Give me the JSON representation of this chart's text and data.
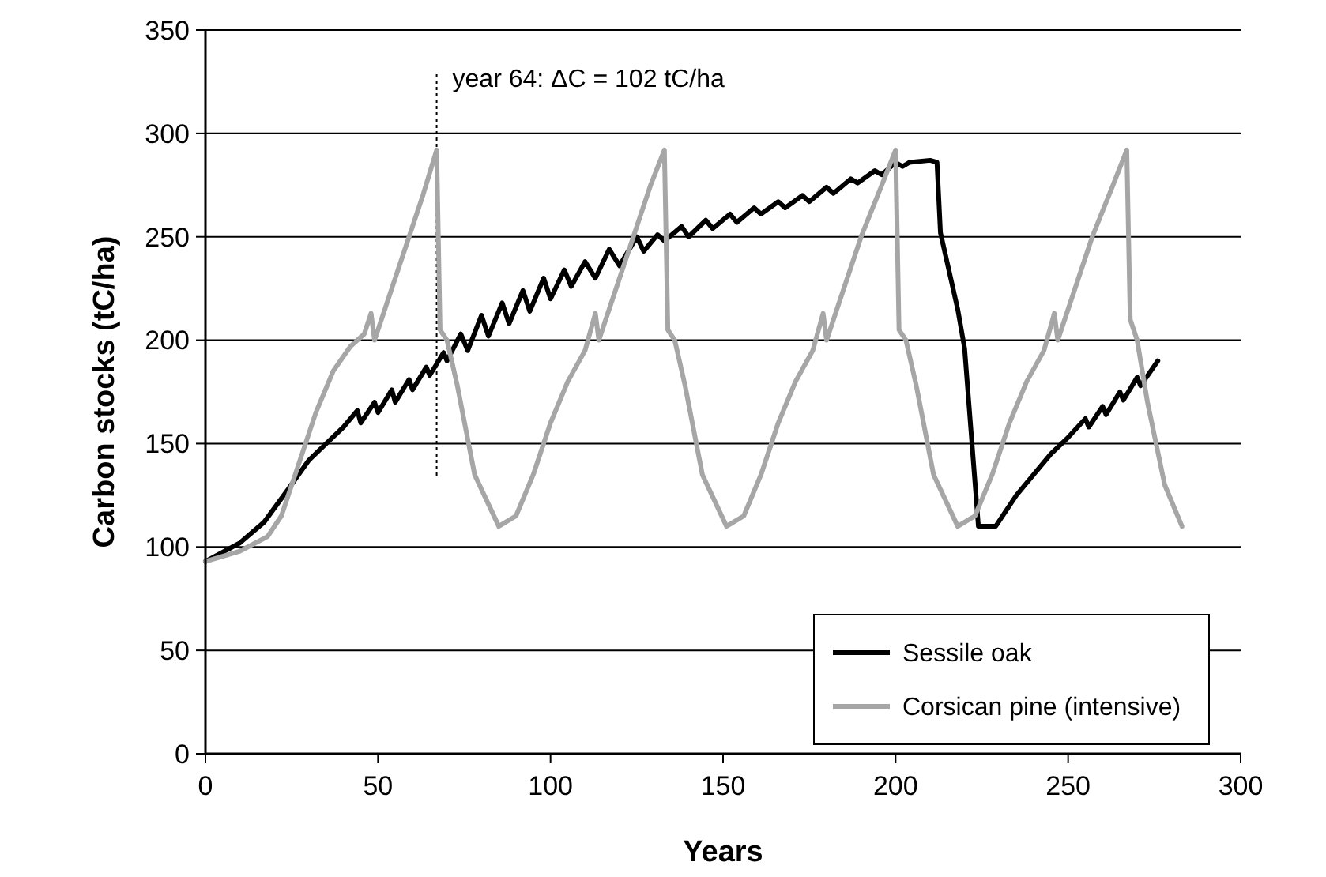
{
  "chart_data": {
    "type": "line",
    "xlabel": "Years",
    "ylabel": "Carbon stocks (tC/ha)",
    "xlim": [
      0,
      300
    ],
    "xticks": [
      0,
      50,
      100,
      150,
      200,
      250,
      300
    ],
    "ylim": [
      0,
      350
    ],
    "yticks": [
      0,
      50,
      100,
      150,
      200,
      250,
      300,
      350
    ],
    "grid": "y",
    "legend": "bottom right",
    "marker": "none",
    "line_style": "solid",
    "ref_lines": [
      {
        "axis": "x",
        "value": 67,
        "color": "#000000",
        "line_style": "dotted"
      }
    ],
    "annotations": [
      "year 64: ΔC = 102 tC/ha"
    ],
    "series": [
      {
        "name": "Sessile oak",
        "color": "#000000",
        "x": [
          0,
          10,
          17,
          24,
          30,
          35,
          40,
          44,
          45,
          49,
          50,
          54,
          55,
          59,
          60,
          64,
          65,
          69,
          70,
          74,
          76,
          80,
          82,
          86,
          88,
          92,
          94,
          98,
          100,
          104,
          106,
          110,
          113,
          117,
          120,
          125,
          127,
          131,
          133,
          138,
          140,
          145,
          147,
          152,
          154,
          159,
          161,
          166,
          168,
          173,
          175,
          180,
          182,
          187,
          189,
          194,
          196,
          200,
          202,
          204,
          210,
          212,
          213,
          218,
          220,
          224,
          229,
          235,
          240,
          245,
          250,
          255,
          256,
          260,
          261,
          265,
          266,
          270,
          271,
          276
        ],
        "values": [
          93,
          102,
          112,
          128,
          142,
          150,
          158,
          166,
          160,
          170,
          165,
          176,
          170,
          181,
          176,
          187,
          183,
          194,
          190,
          203,
          195,
          212,
          202,
          218,
          208,
          224,
          214,
          230,
          220,
          234,
          226,
          238,
          230,
          244,
          236,
          250,
          243,
          251,
          248,
          255,
          250,
          258,
          254,
          261,
          257,
          264,
          261,
          267,
          264,
          270,
          267,
          274,
          271,
          278,
          276,
          282,
          280,
          286,
          284,
          286,
          287,
          286,
          252,
          215,
          196,
          110,
          110,
          125,
          135,
          145,
          153,
          162,
          158,
          168,
          164,
          175,
          171,
          182,
          178,
          190
        ]
      },
      {
        "name": "Corsican pine (intensive)",
        "color": "#a6a6a6",
        "x": [
          0,
          10,
          18,
          22,
          27,
          32,
          37,
          42,
          46,
          48,
          49,
          53,
          58,
          63,
          67,
          68,
          70,
          73,
          78,
          85,
          90,
          95,
          100,
          105,
          110,
          113,
          114,
          118,
          124,
          129,
          133,
          134,
          136,
          139,
          144,
          151,
          156,
          161,
          166,
          171,
          176,
          179,
          180,
          184,
          190,
          196,
          200,
          201,
          203,
          206,
          211,
          218,
          223,
          228,
          233,
          238,
          243,
          246,
          247,
          251,
          257,
          263,
          267,
          268,
          270,
          273,
          278,
          283
        ],
        "values": [
          93,
          98,
          105,
          115,
          140,
          165,
          185,
          197,
          203,
          213,
          200,
          220,
          245,
          270,
          292,
          205,
          200,
          178,
          135,
          110,
          115,
          135,
          160,
          180,
          195,
          213,
          200,
          220,
          250,
          275,
          292,
          205,
          200,
          178,
          135,
          110,
          115,
          135,
          160,
          180,
          195,
          213,
          200,
          220,
          250,
          275,
          292,
          205,
          200,
          178,
          135,
          110,
          115,
          135,
          160,
          180,
          195,
          213,
          200,
          220,
          250,
          275,
          292,
          210,
          200,
          170,
          130,
          110
        ]
      }
    ]
  }
}
